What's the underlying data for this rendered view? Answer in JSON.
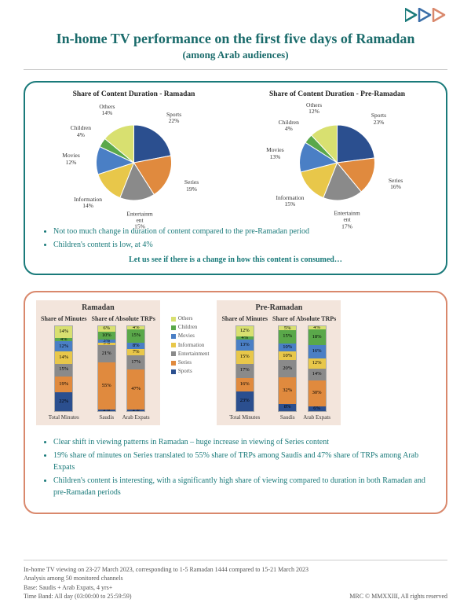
{
  "logo": {
    "colors": [
      "#1a7a7a",
      "#3a6ea8",
      "#d9886c"
    ]
  },
  "title": "In-home TV performance on the first five days of Ramadan",
  "subtitle": "(among Arab audiences)",
  "categories": [
    "Sports",
    "Series",
    "Entertainment",
    "Information",
    "Movies",
    "Children",
    "Others"
  ],
  "category_colors": {
    "Sports": "#2b4f8f",
    "Series": "#e08a3e",
    "Entertainment": "#8a8a8a",
    "Information": "#e8c74a",
    "Movies": "#4a7fc5",
    "Children": "#5aa84a",
    "Others": "#d8e070"
  },
  "pies": {
    "ramadan": {
      "title": "Share of Content Duration - Ramadan",
      "slices": [
        {
          "label": "Sports",
          "value": 22
        },
        {
          "label": "Series",
          "value": 19
        },
        {
          "label": "Entertainment",
          "value": 15
        },
        {
          "label": "Information",
          "value": 14
        },
        {
          "label": "Movies",
          "value": 12
        },
        {
          "label": "Children",
          "value": 4
        },
        {
          "label": "Others",
          "value": 14
        }
      ]
    },
    "pre_ramadan": {
      "title": "Share of Content Duration - Pre-Ramadan",
      "slices": [
        {
          "label": "Sports",
          "value": 23
        },
        {
          "label": "Series",
          "value": 16
        },
        {
          "label": "Entertainment",
          "value": 17
        },
        {
          "label": "Information",
          "value": 15
        },
        {
          "label": "Movies",
          "value": 13
        },
        {
          "label": "Children",
          "value": 4
        },
        {
          "label": "Others",
          "value": 12
        }
      ]
    }
  },
  "pie_bullets": [
    "Not too much change in duration of content compared to the pre-Ramadan period",
    "Children's content is low, at 4%"
  ],
  "pie_lead": "Let us see if there is a change in how this content is consumed…",
  "stacks": {
    "ramadan": {
      "title": "Ramadan",
      "share_minutes": {
        "title": "Share of Minutes",
        "columns": [
          {
            "label": "Total Minutes",
            "values": {
              "Sports": 22,
              "Series": 19,
              "Entertainment": 15,
              "Information": 14,
              "Movies": 12,
              "Children": 4,
              "Others": 14
            }
          }
        ]
      },
      "share_trps": {
        "title": "Share of Absolute TRPs",
        "columns": [
          {
            "label": "Saudis",
            "values": {
              "Sports": 2,
              "Series": 55,
              "Entertainment": 21,
              "Information": 3,
              "Movies": 3,
              "Children": 10,
              "Others": 6
            }
          },
          {
            "label": "Arab Expats",
            "values": {
              "Sports": 2,
              "Series": 47,
              "Entertainment": 17,
              "Information": 7,
              "Movies": 8,
              "Children": 15,
              "Others": 4
            }
          }
        ]
      }
    },
    "pre_ramadan": {
      "title": "Pre-Ramadan",
      "share_minutes": {
        "title": "Share of Minutes",
        "columns": [
          {
            "label": "Total Minutes",
            "values": {
              "Sports": 23,
              "Series": 16,
              "Entertainment": 17,
              "Information": 15,
              "Movies": 13,
              "Children": 4,
              "Others": 12
            }
          }
        ]
      },
      "share_trps": {
        "title": "Share of Absolute TRPs",
        "columns": [
          {
            "label": "Saudis",
            "values": {
              "Sports": 8,
              "Series": 32,
              "Entertainment": 20,
              "Information": 10,
              "Movies": 10,
              "Children": 15,
              "Others": 5
            }
          },
          {
            "label": "Arab Expats",
            "values": {
              "Sports": 6,
              "Series": 30,
              "Entertainment": 14,
              "Information": 12,
              "Movies": 16,
              "Children": 18,
              "Others": 4
            }
          }
        ]
      }
    }
  },
  "legend_order": [
    "Others",
    "Children",
    "Movies",
    "Information",
    "Entertainment",
    "Series",
    "Sports"
  ],
  "stack_bullets": [
    "Clear shift in viewing patterns in Ramadan – huge increase in viewing of Series content",
    "19% share of minutes on Series translated to 55% share of TRPs among Saudis and 47% share of TRPs among Arab Expats",
    "Children's content is interesting, with a significantly high share of viewing compared to duration in both Ramadan and pre-Ramadan periods"
  ],
  "footer": {
    "lines": [
      "In-home TV viewing on 23-27 March 2023, corresponding to 1-5 Ramadan 1444 compared to 15-21 March 2023",
      "Analysis among 50 monitored channels",
      "Base: Saudis + Arab Expats, 4 yrs+",
      "Time Band: All day (03:00:00 to 25:59:59)"
    ],
    "copyright": "MRC © MMXXIII, All rights reserved"
  }
}
